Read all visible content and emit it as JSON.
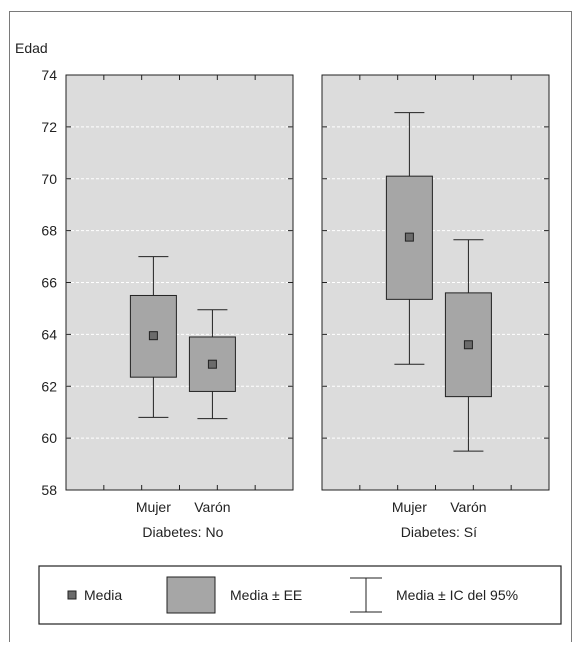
{
  "chart_data": {
    "type": "box",
    "ylabel": "Edad",
    "ylim": [
      58,
      74
    ],
    "yticks": [
      58,
      60,
      62,
      64,
      66,
      68,
      70,
      72,
      74
    ],
    "grid": true,
    "colors": {
      "panel_bg": "#dcdcdc",
      "box_fill": "#a6a6a6",
      "mean_marker": "#6b6b6b",
      "grid": "#ffffff"
    },
    "panels": [
      {
        "label": "Diabetes: No",
        "groups": [
          {
            "category": "Mujer",
            "mean": 63.95,
            "se_low": 62.35,
            "se_high": 65.5,
            "ci_low": 60.8,
            "ci_high": 67.0
          },
          {
            "category": "Varón",
            "mean": 62.85,
            "se_low": 61.8,
            "se_high": 63.9,
            "ci_low": 60.75,
            "ci_high": 64.95
          }
        ]
      },
      {
        "label": "Diabetes: Sí",
        "groups": [
          {
            "category": "Mujer",
            "mean": 67.75,
            "se_low": 65.35,
            "se_high": 70.1,
            "ci_low": 62.85,
            "ci_high": 72.55
          },
          {
            "category": "Varón",
            "mean": 63.6,
            "se_low": 61.6,
            "se_high": 65.6,
            "ci_low": 59.5,
            "ci_high": 67.65
          }
        ]
      }
    ],
    "legend": {
      "placement": "bottom",
      "items": [
        {
          "kind": "mean",
          "label": "Media"
        },
        {
          "kind": "box",
          "label": "Media ± EE"
        },
        {
          "kind": "whisker",
          "label": "Media ± IC del 95%"
        }
      ]
    }
  }
}
